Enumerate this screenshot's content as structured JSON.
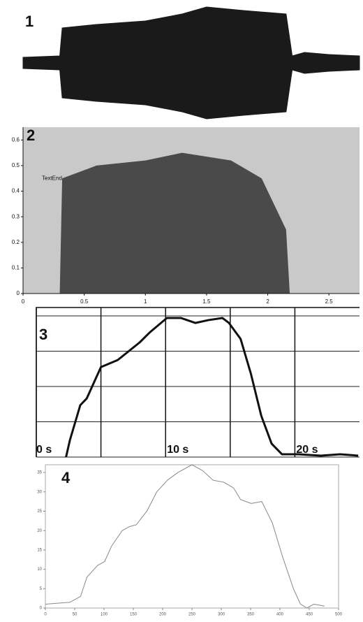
{
  "chart_data": [
    {
      "type": "waveform",
      "label": "1",
      "color": "#1a1a1a",
      "x": [
        0,
        0.3,
        0.32,
        0.6,
        1.0,
        1.3,
        1.5,
        1.8,
        2.15,
        2.2,
        2.3,
        2.5,
        2.75
      ],
      "values": [
        0.08,
        0.1,
        0.5,
        0.55,
        0.6,
        0.7,
        0.8,
        0.75,
        0.7,
        0.1,
        0.15,
        0.12,
        0.1
      ]
    },
    {
      "type": "area",
      "label": "2",
      "annotation": "TextEnd",
      "color": "#4a4a4a",
      "background": "#c9c9c9",
      "x": [
        0.3,
        0.32,
        0.6,
        1.0,
        1.3,
        1.7,
        1.95,
        2.15,
        2.18
      ],
      "values": [
        0,
        0.45,
        0.5,
        0.52,
        0.55,
        0.52,
        0.45,
        0.25,
        0
      ],
      "xlim": [
        0,
        2.75
      ],
      "ylim": [
        0,
        0.65
      ],
      "xticks": [
        0,
        0.5,
        1,
        1.5,
        2,
        2.5
      ],
      "yticks": [
        0,
        0.1,
        0.2,
        0.3,
        0.4,
        0.5,
        0.6
      ]
    },
    {
      "type": "line",
      "label": "3",
      "color": "#111",
      "grid": true,
      "x": [
        2.3,
        2.6,
        3.4,
        3.9,
        5.0,
        6.3,
        8.0,
        8.8,
        10.1,
        11.2,
        12.3,
        13.3,
        14.4,
        14.9,
        15.8,
        16.6,
        17.4,
        18.2,
        19.0,
        20.3,
        22.0,
        23.5,
        24.9
      ],
      "values": [
        0,
        0.48,
        1.47,
        1.66,
        2.55,
        2.75,
        3.25,
        3.54,
        3.94,
        3.94,
        3.8,
        3.88,
        3.94,
        3.8,
        3.35,
        2.36,
        1.17,
        0.38,
        0.08,
        0.08,
        0.04,
        0.08,
        0.04
      ],
      "xlim": [
        0,
        25
      ],
      "ylim": [
        0,
        4
      ],
      "xticks": [
        {
          "value": 0,
          "label": "0 s"
        },
        5,
        {
          "value": 10,
          "label": "10 s"
        },
        15,
        {
          "value": 20,
          "label": "20 s"
        }
      ]
    },
    {
      "type": "line",
      "label": "4",
      "color": "#888",
      "x": [
        0,
        42,
        60,
        71,
        89,
        101,
        113,
        131,
        143,
        155,
        173,
        190,
        208,
        226,
        250,
        268,
        286,
        304,
        321,
        333,
        351,
        369,
        387,
        405,
        423,
        435,
        446,
        458,
        476
      ],
      "values": [
        1,
        1.5,
        3,
        8,
        11,
        12,
        16,
        20,
        21,
        21.5,
        25,
        30,
        33,
        35,
        37,
        35.5,
        33,
        32.5,
        31,
        28,
        27,
        27.5,
        22,
        13,
        5,
        1,
        0,
        1,
        0.5
      ],
      "xlim": [
        0,
        500
      ],
      "ylim": [
        0,
        37
      ],
      "xticks": [
        0,
        50,
        100,
        150,
        200,
        250,
        300,
        350,
        400,
        450,
        500
      ],
      "yticks": [
        0,
        5,
        10,
        15,
        20,
        25,
        30,
        35
      ]
    }
  ]
}
